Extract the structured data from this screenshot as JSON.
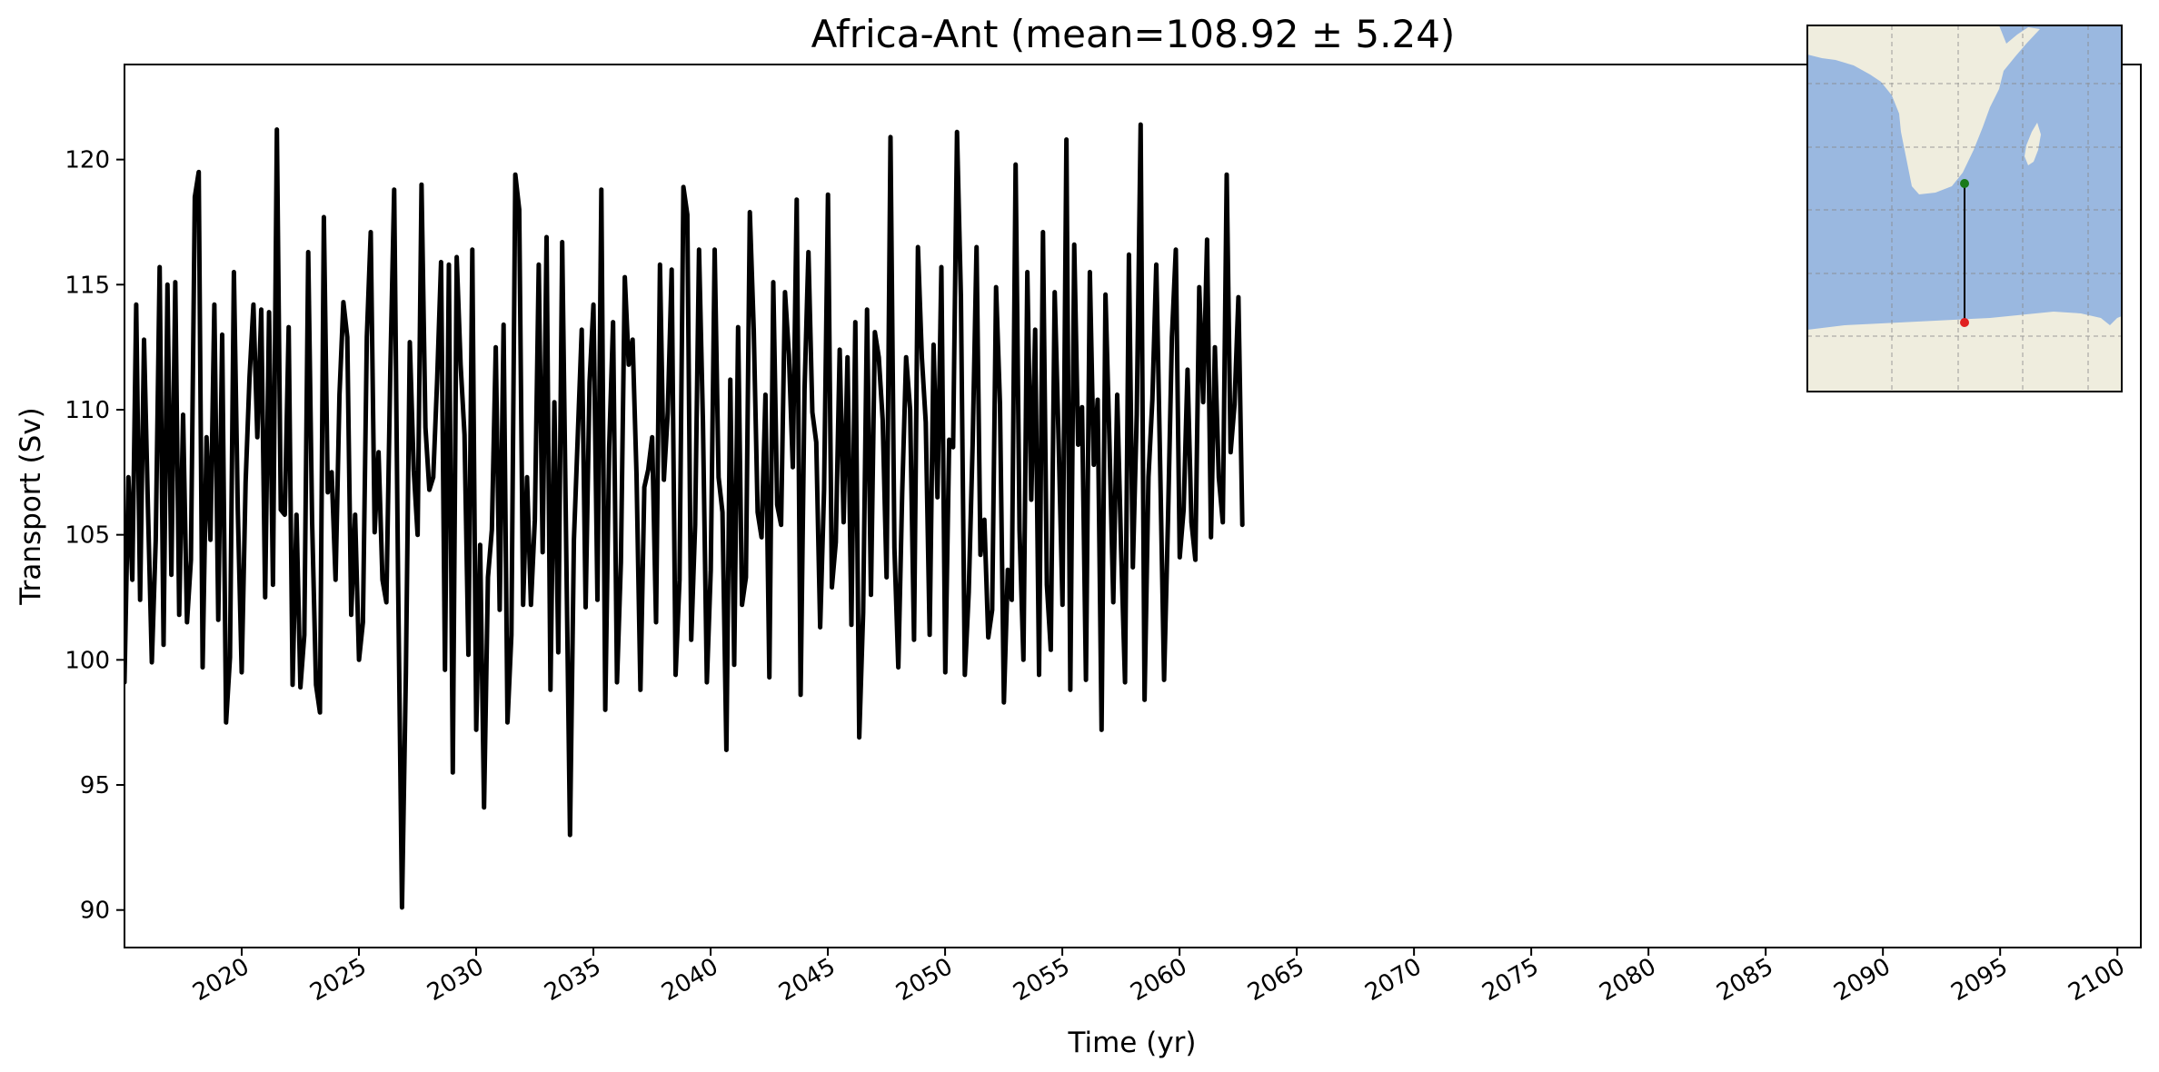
{
  "chart_data": {
    "type": "line",
    "title": "Africa-Ant (mean=108.92 ± 5.24)",
    "xlabel": "Time (yr)",
    "ylabel": "Transport (Sv)",
    "xlim": [
      2015.0,
      2101.0
    ],
    "ylim": [
      88.5,
      123.8
    ],
    "xticks": [
      "2020",
      "2025",
      "2030",
      "2035",
      "2040",
      "2045",
      "2050",
      "2055",
      "2060",
      "2065",
      "2070",
      "2075",
      "2080",
      "2085",
      "2090",
      "2095",
      "2100"
    ],
    "yticks": [
      "90",
      "95",
      "100",
      "105",
      "110",
      "115",
      "120"
    ],
    "grid": false,
    "line_color": "#000000",
    "series": [
      {
        "x_start": 2015.0,
        "x_step": 0.1667,
        "values": [
          99.1,
          107.3,
          103.2,
          114.2,
          102.4,
          112.8,
          106.1,
          99.9,
          104.8,
          115.7,
          100.6,
          115.0,
          103.4,
          115.1,
          101.8,
          109.8,
          101.5,
          104.0,
          118.5,
          119.5,
          99.7,
          108.9,
          104.8,
          114.2,
          101.6,
          113.0,
          97.5,
          100.1,
          115.5,
          106.0,
          99.5,
          107.1,
          111.3,
          114.2,
          108.9,
          114.0,
          102.5,
          113.9,
          103.0,
          121.2,
          106.0,
          105.8,
          113.3,
          99.0,
          105.8,
          98.9,
          101.0,
          116.3,
          105.5,
          99.0,
          97.9,
          117.7,
          106.7,
          107.5,
          103.2,
          110.6,
          114.3,
          112.9,
          101.8,
          105.8,
          100.0,
          101.5,
          112.9,
          117.1,
          105.1,
          108.3,
          103.2,
          102.3,
          111.5,
          118.8,
          103.2,
          90.1,
          99.5,
          112.7,
          107.6,
          105.0,
          119.0,
          109.3,
          106.8,
          107.3,
          111.2,
          115.9,
          99.6,
          115.8,
          95.5,
          116.1,
          111.8,
          109.0,
          100.2,
          116.4,
          97.2,
          104.6,
          94.1,
          103.3,
          105.2,
          112.5,
          102.0,
          113.4,
          97.5,
          101.0,
          119.4,
          118.0,
          102.2,
          107.3,
          102.2,
          105.6,
          115.8,
          104.3,
          116.9,
          98.8,
          110.3,
          100.3,
          116.7,
          104.8,
          93.0,
          104.8,
          109.0,
          113.2,
          102.1,
          111.1,
          114.2,
          102.4,
          118.8,
          98.0,
          108.5,
          113.5,
          99.1,
          103.9,
          115.3,
          111.8,
          112.8,
          107.4,
          98.8,
          106.9,
          107.6,
          108.9,
          101.5,
          115.8,
          107.2,
          109.9,
          115.6,
          99.4,
          103.2,
          118.9,
          117.8,
          100.8,
          105.4,
          116.4,
          109.5,
          99.1,
          103.6,
          116.4,
          107.3,
          105.9,
          96.4,
          111.2,
          99.8,
          113.3,
          102.2,
          103.3,
          117.9,
          113.2,
          105.9,
          104.9,
          110.6,
          99.3,
          115.1,
          106.2,
          105.4,
          114.7,
          112.2,
          107.7,
          118.4,
          98.6,
          110.8,
          116.3,
          109.9,
          108.7,
          101.3,
          106.8,
          118.6,
          102.9,
          104.7,
          112.4,
          105.5,
          112.1,
          101.4,
          113.5,
          96.9,
          101.9,
          114.0,
          102.6,
          113.1,
          112.1,
          109.6,
          103.3,
          120.9,
          104.5,
          99.7,
          106.7,
          112.1,
          110.0,
          100.8,
          116.5,
          112.1,
          109.5,
          101.0,
          112.6,
          106.5,
          115.7,
          99.5,
          108.8,
          108.5,
          121.1,
          114.5,
          99.4,
          102.7,
          108.6,
          116.5,
          104.2,
          105.6,
          100.9,
          102.0,
          114.9,
          110.2,
          98.3,
          103.6,
          102.4,
          119.8,
          105.2,
          100.0,
          115.5,
          106.4,
          113.2,
          99.4,
          117.1,
          103.0,
          100.4,
          114.7,
          108.8,
          102.2,
          120.8,
          98.8,
          116.6,
          108.6,
          110.1,
          99.2,
          115.5,
          107.8,
          110.4,
          97.2,
          114.6,
          108.8,
          102.3,
          110.6,
          104.4,
          99.1,
          116.2,
          103.7,
          109.8,
          121.4,
          98.4,
          107.3,
          110.4,
          115.8,
          107.7,
          99.2,
          105.6,
          112.9,
          116.4,
          104.1,
          106.0,
          111.6,
          105.5,
          104.0,
          114.9,
          110.3,
          116.8,
          104.9,
          112.5,
          107.3,
          105.5,
          119.4,
          108.3,
          110.2,
          114.5,
          105.4
        ]
      }
    ]
  },
  "inset_map": {
    "land_color": "#efedde",
    "ocean_color": "#9ab8e0",
    "start_marker_color": "#1a7a1a",
    "end_marker_color": "#e02020",
    "section_line_color": "#000000"
  }
}
